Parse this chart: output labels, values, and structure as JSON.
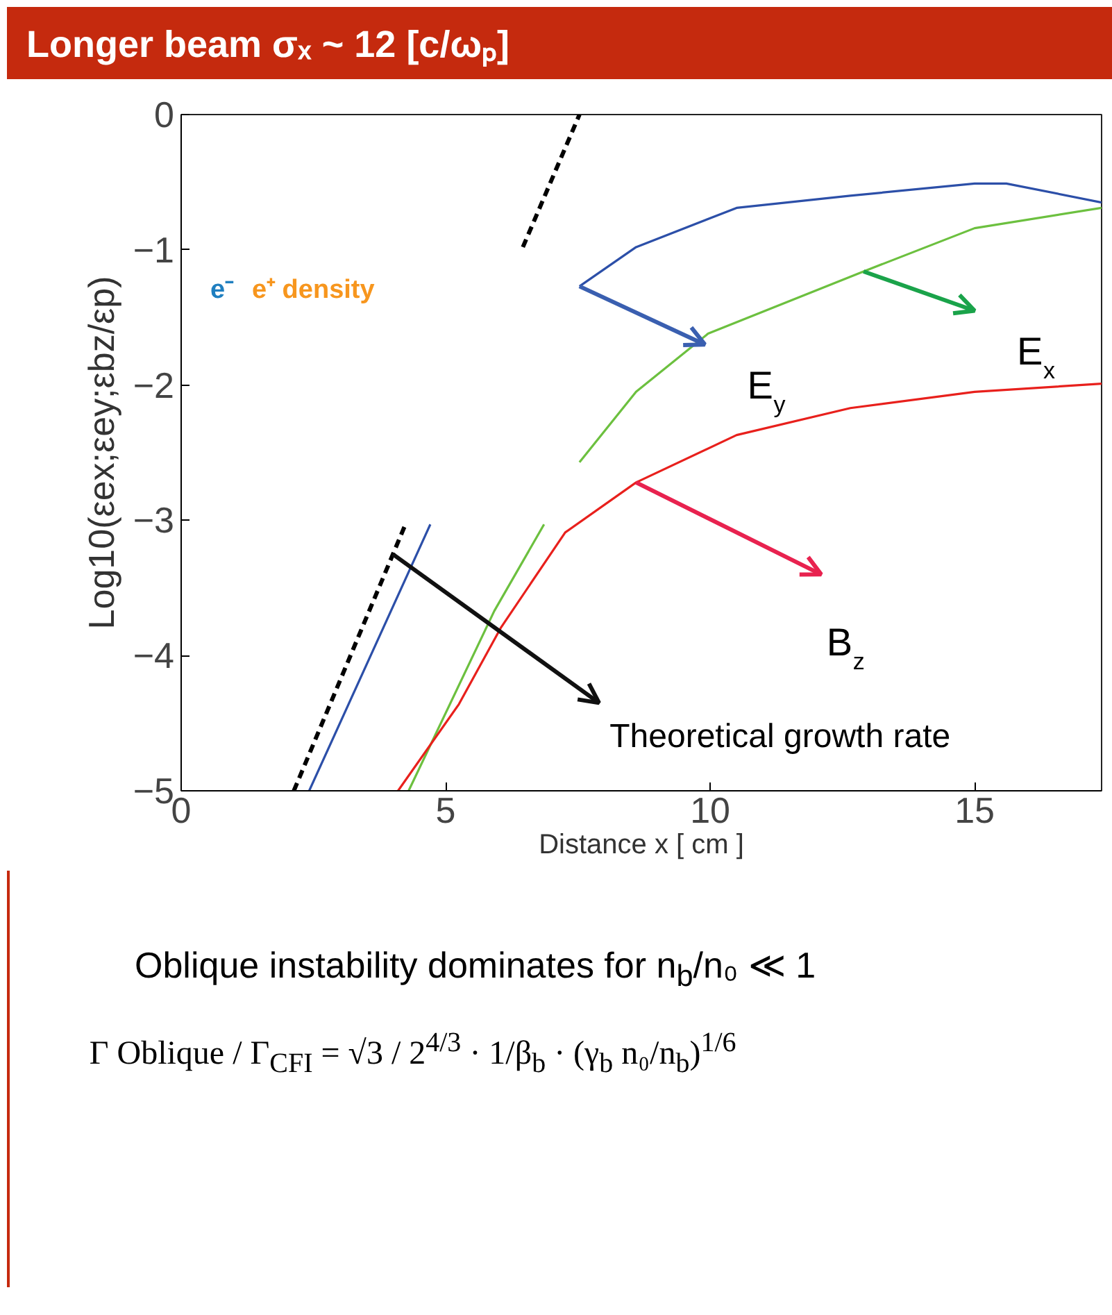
{
  "chart_data": {
    "type": "line",
    "title": "Longer beam σₓ ~ 12 [c/ωₚ]",
    "xlabel": "Distance x [ cm ]",
    "ylabel": "Log10(εex;εey;εbz/εp)",
    "xlim": [
      0,
      17.4
    ],
    "ylim": [
      -5,
      0
    ],
    "xticks": [
      0,
      5,
      10,
      15
    ],
    "yticks": [
      -5,
      -4,
      -3,
      -2,
      -1,
      0
    ],
    "grid": false,
    "marker": "none",
    "series": [
      {
        "color": "#2c4fa8",
        "x": [
          2.42,
          4.71,
          6.0,
          7.53,
          8.6,
          10.5,
          12.65,
          15.0,
          15.6,
          17.4
        ],
        "values": [
          -5,
          -3.03,
          null,
          -1.27,
          -0.98,
          -0.69,
          -0.6,
          -0.51,
          -0.51,
          -0.65
        ]
      },
      {
        "color": "#6cc03f",
        "x": [
          4.3,
          5.92,
          6.86,
          7.2,
          7.53,
          8.6,
          9.96,
          12.9,
          15.0,
          17.4
        ],
        "values": [
          -5,
          -3.67,
          -3.03,
          null,
          -2.57,
          -2.05,
          -1.62,
          -1.16,
          -0.84,
          -0.69
        ]
      },
      {
        "color": "#e8201c",
        "x": [
          4.1,
          5.25,
          6.05,
          7.26,
          8.6,
          10.5,
          12.65,
          15.0,
          17.4
        ],
        "values": [
          -5,
          -4.36,
          -3.79,
          -3.09,
          -2.72,
          -2.37,
          -2.17,
          -2.05,
          -1.99
        ]
      },
      {
        "color": "#000000",
        "line_style": "dashed",
        "x": [
          2.13,
          4.24,
          5.0,
          6.46,
          7.53
        ],
        "values": [
          -5,
          -3.03,
          null,
          -0.98,
          0
        ]
      }
    ],
    "annotations": [
      {
        "text": "E$_{y}$",
        "x": 7.53,
        "y": -1.27
      },
      {
        "text": "E$_{x}$",
        "x": 12.9,
        "y": -1.16
      },
      {
        "text": "B$_{z}$",
        "x": 8.6,
        "y": -2.72
      },
      {
        "text": "Theoretical growth rate",
        "x": 4.0,
        "y": -3.25
      },
      "e⁻",
      "e⁺ density",
      "Oblique instability dominates for n$_{b}$/n₀ ≪ 1",
      "Γ Oblique / Γ$_{CFI}$ = √3 / 2$^{4/3}$ · 1/β$_{b}$ · (γ$_{b}$ n₀/n$_{b}$)$^{1/6}$"
    ]
  }
}
